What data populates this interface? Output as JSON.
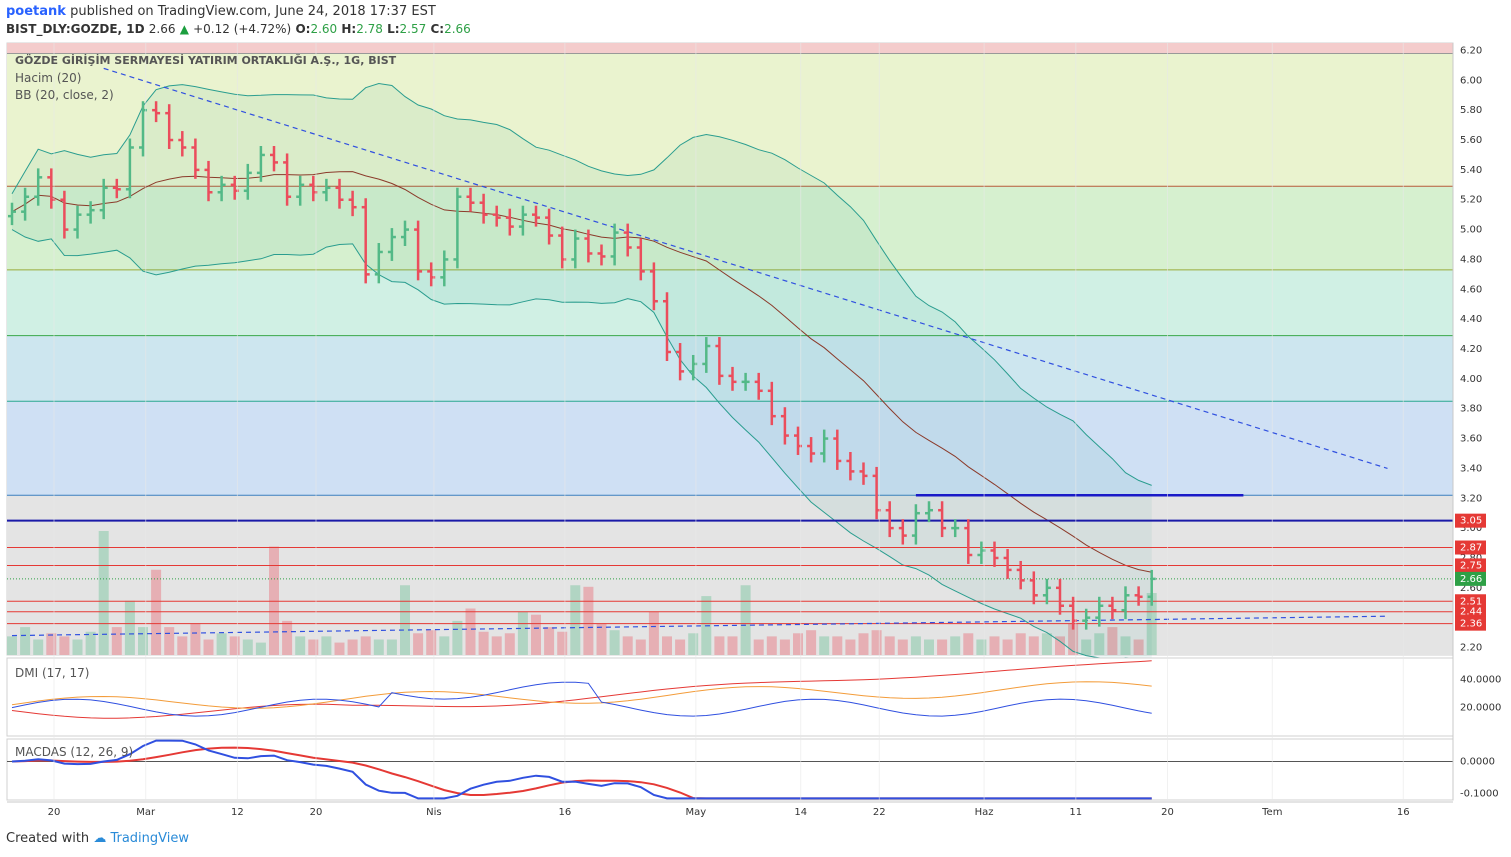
{
  "header": {
    "author": "poetank",
    "published": "published on TradingView.com, June 24, 2018 17:37 EST",
    "symbol": "BIST_DLY:GOZDE, 1D",
    "last": "2.66",
    "change": "+0.12 (+4.72%)",
    "o_label": "O:",
    "o": "2.60",
    "h_label": "H:",
    "h": "2.78",
    "l_label": "L:",
    "l": "2.57",
    "c_label": "C:",
    "c": "2.66"
  },
  "panes": {
    "main_title": "GÖZDE GİRİŞİM SERMAYESİ YATIRIM ORTAKLIĞI A.Ş., 1G, BIST",
    "volume_label": "Hacim (20)",
    "bb_label": "BB (20, close, 2)",
    "dmi_label": "DMI (17, 17)",
    "macd_label": "MACDAS (12, 26, 9)"
  },
  "footer": {
    "created": "Created with",
    "brand": "TradingView"
  },
  "colors": {
    "up": "#53b987",
    "down": "#eb4d5c",
    "bb_band": "#2a9d8f",
    "basis": "#8b3a2a"
  },
  "chart_data": {
    "type": "ohlc",
    "y_ticks": [
      "6.20",
      "6.00",
      "5.80",
      "5.60",
      "5.40",
      "5.20",
      "5.00",
      "4.80",
      "4.60",
      "4.40",
      "4.20",
      "4.00",
      "3.80",
      "3.60",
      "3.40",
      "3.20",
      "3.00",
      "2.80",
      "2.60",
      "2.40",
      "2.20"
    ],
    "ylim": [
      2.15,
      6.25
    ],
    "x_ticks": [
      {
        "label": "20",
        "day": 0
      },
      {
        "label": "Mar",
        "day": 7
      },
      {
        "label": "12",
        "day": 14
      },
      {
        "label": "20",
        "day": 20
      },
      {
        "label": "Nis",
        "day": 29
      },
      {
        "label": "16",
        "day": 39
      },
      {
        "label": "May",
        "day": 49
      },
      {
        "label": "14",
        "day": 57
      },
      {
        "label": "22",
        "day": 63
      },
      {
        "label": "Haz",
        "day": 71
      },
      {
        "label": "11",
        "day": 78
      },
      {
        "label": "20",
        "day": 85
      },
      {
        "label": "Tem",
        "day": 93
      },
      {
        "label": "16",
        "day": 103
      }
    ],
    "fib_levels": [
      6.18,
      5.29,
      4.73,
      4.29,
      3.85,
      3.22
    ],
    "fib_fills": [
      "#f4cccc",
      "#eaf3cf",
      "#d6f0cf",
      "#d0f0e4",
      "#cde6ef",
      "#cfe0f4",
      "#e4e4e4"
    ],
    "h_lines": [
      {
        "value": 3.05,
        "label": "3.05",
        "color": "#1a1aa8"
      },
      {
        "value": 2.87,
        "label": "2.87",
        "color": "#e53935"
      },
      {
        "value": 2.75,
        "label": "2.75",
        "color": "#e53935"
      },
      {
        "value": 2.51,
        "label": "2.51",
        "color": "#e53935"
      },
      {
        "value": 2.44,
        "label": "2.44",
        "color": "#e53935"
      },
      {
        "value": 2.36,
        "label": "2.36",
        "color": "#e53935"
      }
    ],
    "last_price": {
      "value": 2.66,
      "label": "2.66"
    },
    "trendline": {
      "from": [
        7,
        6.08
      ],
      "to": [
        105,
        3.4
      ]
    },
    "support_line": {
      "from": [
        0,
        2.28
      ],
      "to": [
        105,
        2.41
      ]
    },
    "resistance_segment": {
      "from": [
        69,
        3.22
      ],
      "to": [
        94,
        3.22
      ]
    },
    "close": [
      5.12,
      5.22,
      5.35,
      5.2,
      5.0,
      5.1,
      5.13,
      5.28,
      5.27,
      5.55,
      5.8,
      5.78,
      5.6,
      5.55,
      5.4,
      5.25,
      5.3,
      5.26,
      5.38,
      5.5,
      5.45,
      5.22,
      5.3,
      5.25,
      5.28,
      5.2,
      5.15,
      4.7,
      4.85,
      4.95,
      5.0,
      4.72,
      4.68,
      4.8,
      5.22,
      5.18,
      5.1,
      5.08,
      5.02,
      5.1,
      5.08,
      4.96,
      4.8,
      4.94,
      4.84,
      4.82,
      4.98,
      4.88,
      4.72,
      4.52,
      4.18,
      4.05,
      4.1,
      4.22,
      4.02,
      3.98,
      3.98,
      3.92,
      3.75,
      3.62,
      3.55,
      3.5,
      3.6,
      3.45,
      3.38,
      3.35,
      3.12,
      3.0,
      2.95,
      3.1,
      3.12,
      3.0,
      3.0,
      2.82,
      2.85,
      2.8,
      2.72,
      2.65,
      2.55,
      2.6,
      2.48,
      2.38,
      2.4,
      2.48,
      2.45,
      2.55,
      2.54,
      2.66
    ],
    "volume_ylim": [
      0,
      1.0
    ],
    "volume": [
      0.12,
      0.18,
      0.1,
      0.14,
      0.12,
      0.1,
      0.15,
      0.8,
      0.18,
      0.35,
      0.18,
      0.55,
      0.18,
      0.12,
      0.2,
      0.1,
      0.14,
      0.12,
      0.1,
      0.08,
      0.7,
      0.22,
      0.12,
      0.1,
      0.12,
      0.08,
      0.1,
      0.12,
      0.1,
      0.1,
      0.45,
      0.14,
      0.16,
      0.12,
      0.22,
      0.3,
      0.15,
      0.12,
      0.14,
      0.28,
      0.26,
      0.18,
      0.15,
      0.45,
      0.44,
      0.2,
      0.16,
      0.12,
      0.1,
      0.28,
      0.12,
      0.1,
      0.14,
      0.38,
      0.12,
      0.12,
      0.45,
      0.1,
      0.12,
      0.1,
      0.14,
      0.16,
      0.12,
      0.12,
      0.1,
      0.14,
      0.16,
      0.12,
      0.1,
      0.12,
      0.1,
      0.1,
      0.12,
      0.14,
      0.1,
      0.12,
      0.1,
      0.14,
      0.12,
      0.14,
      0.12,
      0.2,
      0.1,
      0.14,
      0.18,
      0.12,
      0.1,
      0.4
    ],
    "dmi_ticks": [
      "40.0000",
      "20.0000"
    ],
    "macd_ticks": [
      "0.0000",
      "-0.1000"
    ]
  }
}
